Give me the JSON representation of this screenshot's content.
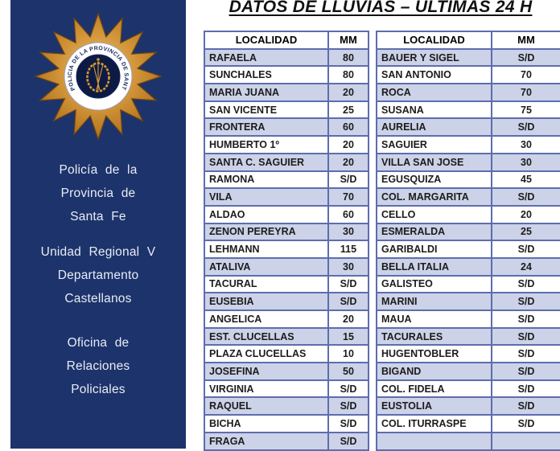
{
  "title": "DATOS DE LLUVIAS – ULTIMAS 24 H",
  "sidebar": {
    "background_color": "#1d336b",
    "text_color": "#ffffff",
    "badge": {
      "ring_text": "POLICIA DE LA PROVINCIA DE SANTA FE",
      "star_color": "#c9882f",
      "ring_color": "#ffffff",
      "center_color": "#0d1b44",
      "wreath_color": "#d99a33"
    },
    "org_lines": [
      "Policía de la",
      "Provincia de",
      "Santa Fe"
    ],
    "unit_lines": [
      "Unidad Regional V",
      "Departamento",
      "Castellanos"
    ],
    "office_lines": [
      "Oficina de",
      "Relaciones",
      "Policiales"
    ]
  },
  "table": {
    "border_color": "#5d6dae",
    "stripe_color": "#ccd2e7",
    "columns": [
      "LOCALIDAD",
      "MM",
      "LOCALIDAD",
      "MM"
    ],
    "rows": [
      [
        "RAFAELA",
        "80",
        "BAUER Y SIGEL",
        "S/D"
      ],
      [
        "SUNCHALES",
        "80",
        "SAN ANTONIO",
        "70"
      ],
      [
        "MARIA JUANA",
        "20",
        "ROCA",
        "70"
      ],
      [
        "SAN VICENTE",
        "25",
        "SUSANA",
        "75"
      ],
      [
        "FRONTERA",
        "60",
        "AURELIA",
        "S/D"
      ],
      [
        "HUMBERTO 1º",
        "20",
        "SAGUIER",
        "30"
      ],
      [
        "SANTA C. SAGUIER",
        "20",
        "VILLA SAN JOSE",
        "30"
      ],
      [
        "RAMONA",
        "S/D",
        "EGUSQUIZA",
        "45"
      ],
      [
        "VILA",
        "70",
        "COL. MARGARITA",
        "S/D"
      ],
      [
        "ALDAO",
        "60",
        "CELLO",
        "20"
      ],
      [
        "ZENON PEREYRA",
        "30",
        "ESMERALDA",
        "25"
      ],
      [
        "LEHMANN",
        "115",
        "GARIBALDI",
        "S/D"
      ],
      [
        "ATALIVA",
        "30",
        "BELLA ITALIA",
        "24"
      ],
      [
        "TACURAL",
        "S/D",
        "GALISTEO",
        "S/D"
      ],
      [
        "EUSEBIA",
        "S/D",
        "MARINI",
        "S/D"
      ],
      [
        "ANGELICA",
        "20",
        "MAUA",
        "S/D"
      ],
      [
        "EST. CLUCELLAS",
        "15",
        "TACURALES",
        "S/D"
      ],
      [
        "PLAZA CLUCELLAS",
        "10",
        "HUGENTOBLER",
        "S/D"
      ],
      [
        "JOSEFINA",
        "50",
        "BIGAND",
        "S/D"
      ],
      [
        "VIRGINIA",
        "S/D",
        "COL. FIDELA",
        "S/D"
      ],
      [
        "RAQUEL",
        "S/D",
        "EUSTOLIA",
        "S/D"
      ],
      [
        "BICHA",
        "S/D",
        "COL. ITURRASPE",
        "S/D"
      ],
      [
        "FRAGA",
        "S/D",
        "",
        ""
      ]
    ]
  }
}
